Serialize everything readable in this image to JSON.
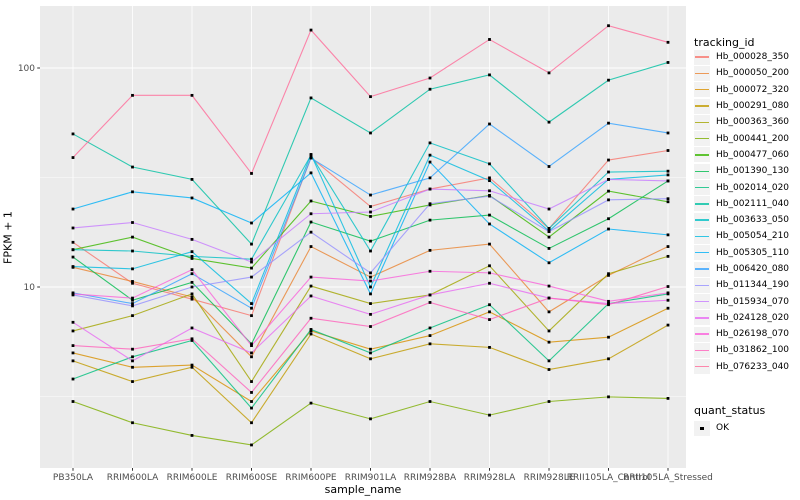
{
  "axes": {
    "y_title": "FPKM + 1",
    "x_title": "sample_name",
    "y_tick_labels": [
      "100",
      "10"
    ]
  },
  "legend": {
    "tracking_title": "tracking_id",
    "quant_title": "quant_status",
    "quant_label": "OK"
  },
  "colors": {
    "panel_background": "#EBEBEB",
    "gridline": "#FFFFFF",
    "tick_text": "#4D4D4D",
    "marker": "#000000"
  },
  "chart_data": {
    "type": "line",
    "y_scale": "log10",
    "ylabel": "FPKM + 1",
    "xlabel": "sample_name",
    "ylim": [
      1.6,
      180
    ],
    "y_major_ticks": [
      100,
      10
    ],
    "y_minor_gridlines": [
      31.62,
      3.162
    ],
    "grid": true,
    "legend_position": "right",
    "marker": "black-square",
    "categories": [
      "PB350LA",
      "RRIM600LA",
      "RRIM600LE",
      "RRIM600SE",
      "RRIM600PE",
      "RRIM901LA",
      "RRIM928BA",
      "RRIM928LA",
      "RRIM928LE",
      "RRII105LA_Control",
      "RRII105LA_Stressed"
    ],
    "series": [
      {
        "name": "Hb_000028_350",
        "color": "#F8766D",
        "values": [
          16,
          10.4,
          8.8,
          7.4,
          39,
          23.3,
          28,
          31.5,
          18.5,
          38,
          42
        ]
      },
      {
        "name": "Hb_000050_200",
        "color": "#EA8331",
        "values": [
          12.3,
          10.6,
          9.0,
          4.8,
          15.3,
          11.1,
          14.7,
          15.7,
          7.7,
          11.3,
          15.3
        ]
      },
      {
        "name": "Hb_000072_320",
        "color": "#D89000",
        "values": [
          5.0,
          4.3,
          4.4,
          3.0,
          6.3,
          5.2,
          6.0,
          7.7,
          5.6,
          5.9,
          8.0
        ]
      },
      {
        "name": "Hb_000291_080",
        "color": "#C09B00",
        "values": [
          4.6,
          3.7,
          4.3,
          2.4,
          6.1,
          4.7,
          5.5,
          5.3,
          4.2,
          4.7,
          6.7
        ]
      },
      {
        "name": "Hb_000363_360",
        "color": "#A3A500",
        "values": [
          6.3,
          7.4,
          9.3,
          3.7,
          10.1,
          8.4,
          9.2,
          12.5,
          6.3,
          11.5,
          13.8
        ]
      },
      {
        "name": "Hb_000441_200",
        "color": "#7CAE00",
        "values": [
          3.0,
          2.4,
          2.1,
          1.9,
          2.95,
          2.5,
          3.0,
          2.6,
          3.0,
          3.15,
          3.1
        ]
      },
      {
        "name": "Hb_000477_060",
        "color": "#39B600",
        "values": [
          14.8,
          16.9,
          13.5,
          12.2,
          24.7,
          21.0,
          23.7,
          26.2,
          16.9,
          27.4,
          24.5
        ]
      },
      {
        "name": "Hb_001390_130",
        "color": "#00BB4E",
        "values": [
          13.7,
          8.7,
          10.5,
          5.5,
          19.8,
          16.2,
          20.2,
          21.3,
          15.0,
          20.5,
          30.5
        ]
      },
      {
        "name": "Hb_002014_020",
        "color": "#00BF7D",
        "values": [
          3.8,
          4.8,
          5.7,
          2.8,
          6.4,
          5.0,
          6.5,
          8.3,
          4.6,
          8.4,
          9.3
        ]
      },
      {
        "name": "Hb_002111_040",
        "color": "#00C1A3",
        "values": [
          50,
          35.3,
          31,
          15.7,
          73,
          50.5,
          80,
          93,
          56.6,
          88,
          106
        ]
      },
      {
        "name": "Hb_003633_050",
        "color": "#00BFC4",
        "values": [
          14.8,
          14.6,
          13.8,
          13.4,
          40,
          14.6,
          45.5,
          36.5,
          18.5,
          33.5,
          33.8
        ]
      },
      {
        "name": "Hb_005054_210",
        "color": "#00BAE0",
        "values": [
          12.4,
          12.1,
          14.5,
          8.4,
          40.3,
          10.0,
          40.0,
          30.6,
          18.0,
          31,
          32.5
        ]
      },
      {
        "name": "Hb_005305_110",
        "color": "#00B0F6",
        "values": [
          22.7,
          27.2,
          25.5,
          19.6,
          33.2,
          9.3,
          37.2,
          19.4,
          12.9,
          18.4,
          17.3
        ]
      },
      {
        "name": "Hb_006420_080",
        "color": "#35A2FF",
        "values": [
          9.4,
          8.4,
          11.5,
          8.0,
          38.8,
          26.3,
          31.5,
          55.5,
          35.5,
          56,
          50.5
        ]
      },
      {
        "name": "Hb_011344_190",
        "color": "#9590FF",
        "values": [
          9.2,
          8.2,
          10.0,
          11.1,
          17.8,
          11.6,
          24,
          26,
          17.9,
          25,
          25.3
        ]
      },
      {
        "name": "Hb_015934_070",
        "color": "#C77CFF",
        "values": [
          18.6,
          19.7,
          16.5,
          13.0,
          21.6,
          22.0,
          28,
          27.5,
          22.7,
          31,
          30.5
        ]
      },
      {
        "name": "Hb_024128_020",
        "color": "#E76BF3",
        "values": [
          6.9,
          4.6,
          6.5,
          5.0,
          9.1,
          7.5,
          9.2,
          10.4,
          8.9,
          8.4,
          8.7
        ]
      },
      {
        "name": "Hb_026198_070",
        "color": "#FA62DB",
        "values": [
          9.3,
          8.9,
          12.0,
          5.4,
          11.1,
          10.65,
          11.8,
          11.6,
          10.1,
          8.6,
          9.4
        ]
      },
      {
        "name": "Hb_031862_100",
        "color": "#FF62BC",
        "values": [
          5.4,
          5.2,
          5.8,
          3.3,
          7.2,
          6.6,
          8.5,
          7.1,
          8.9,
          8.3,
          10.05
        ]
      },
      {
        "name": "Hb_076233_040",
        "color": "#FF6A98",
        "values": [
          39,
          75,
          75,
          33,
          149,
          74,
          90,
          135,
          95,
          156,
          131
        ]
      }
    ]
  }
}
